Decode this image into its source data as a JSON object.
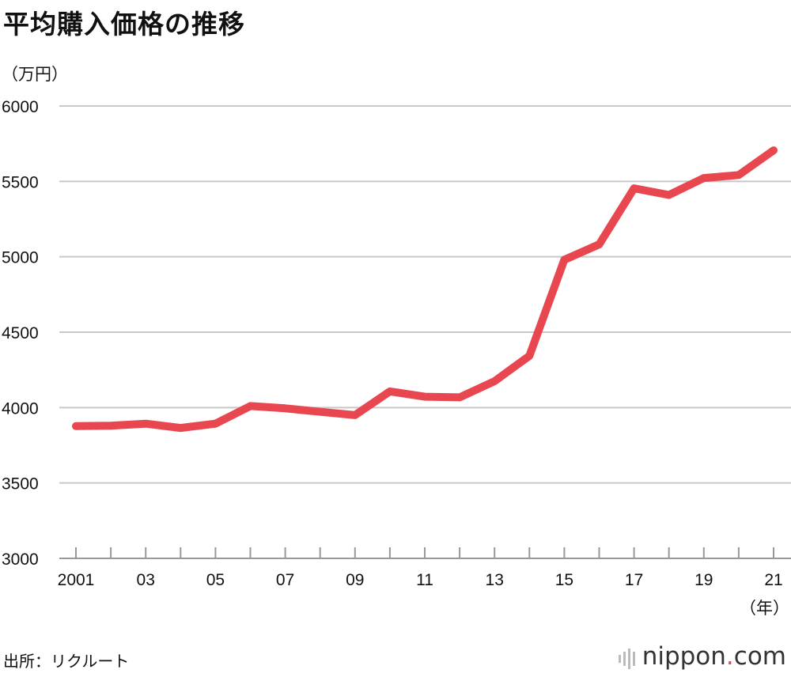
{
  "title": "平均購入価格の推移",
  "source": "出所：リクルート",
  "brand": {
    "prefix": "nippon",
    "dot": ".",
    "suffix": "com"
  },
  "colors": {
    "line": "#e8474f",
    "grid": "#c8c8c8",
    "axis": "#999999"
  },
  "chart_data": {
    "type": "line",
    "ylabel": "（万円）",
    "xlabel": "（年）",
    "ylim": [
      3000,
      6000
    ],
    "yticks": [
      3000,
      3500,
      4000,
      4500,
      5000,
      5500,
      6000
    ],
    "grid": true,
    "x": [
      2001,
      2002,
      2003,
      2004,
      2005,
      2006,
      2007,
      2008,
      2009,
      2010,
      2011,
      2012,
      2013,
      2014,
      2015,
      2016,
      2017,
      2018,
      2019,
      2020,
      2021
    ],
    "xtick_labels": [
      "2001",
      "03",
      "05",
      "07",
      "09",
      "11",
      "13",
      "15",
      "17",
      "19",
      "21"
    ],
    "xtick_positions": [
      2001,
      2003,
      2005,
      2007,
      2009,
      2011,
      2013,
      2015,
      2017,
      2019,
      2021
    ],
    "series": [
      {
        "values": [
          3877,
          3880,
          3893,
          3865,
          3893,
          4010,
          3995,
          3972,
          3950,
          4107,
          4072,
          4068,
          4175,
          4343,
          4980,
          5082,
          5454,
          5410,
          5522,
          5542,
          5706
        ]
      }
    ]
  }
}
